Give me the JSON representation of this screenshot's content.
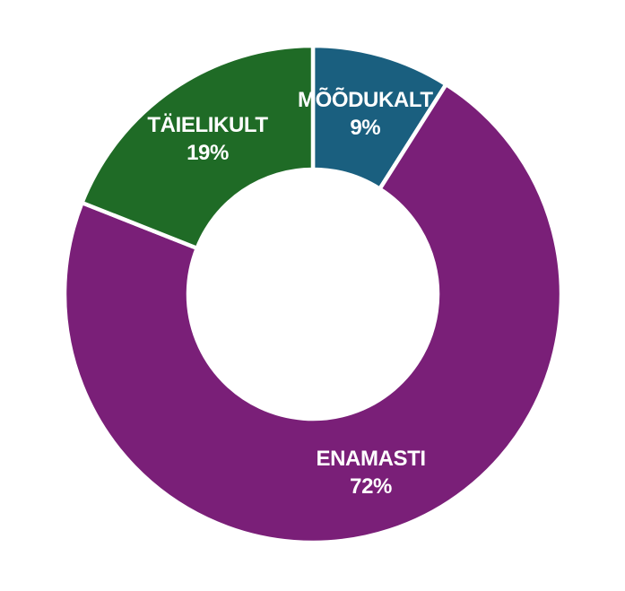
{
  "canvas": {
    "background": "#FFFFFF"
  },
  "chart_data": {
    "type": "pie",
    "subtype": "donut",
    "title": "",
    "legend": "none",
    "direction": "clockwise",
    "start_angle_deg": 0,
    "inner_radius_ratio": 0.5,
    "separator_color": "#FFFFFF",
    "label_text_color": "#FFFFFF",
    "slices": [
      {
        "label": "MÕÕDUKALT",
        "value": 9,
        "percent_text": "9%",
        "color": "#1A5F7F"
      },
      {
        "label": "ENAMASTI",
        "value": 72,
        "percent_text": "72%",
        "color": "#7A1F78"
      },
      {
        "label": "TÄIELIKULT",
        "value": 19,
        "percent_text": "19%",
        "color": "#1F6B26"
      }
    ]
  }
}
